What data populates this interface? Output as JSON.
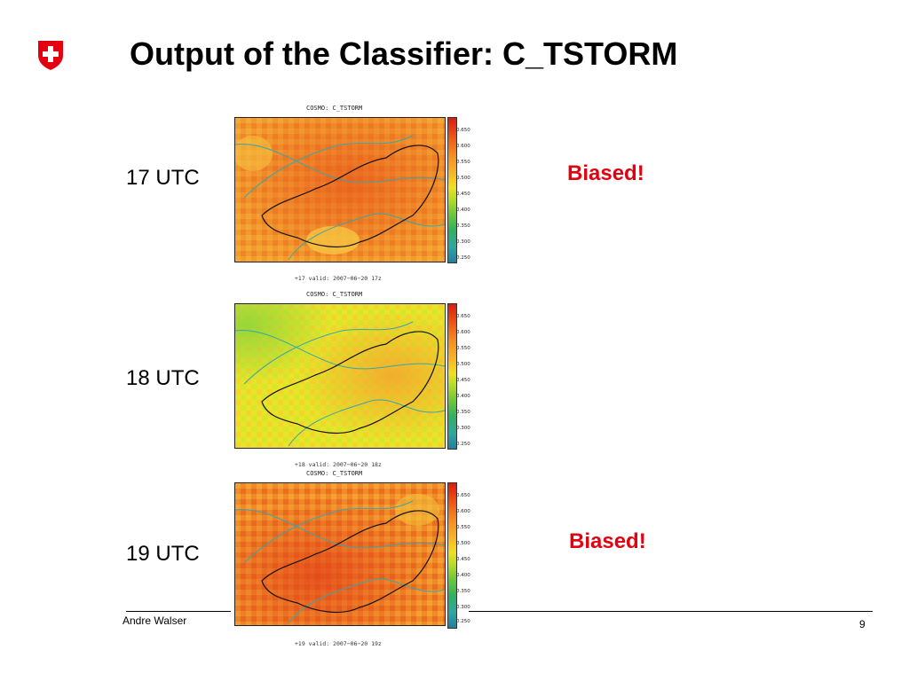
{
  "slide": {
    "title": "Output of the Classifier: C_TSTORM",
    "footer_author": "Andre Walser",
    "page_number": "9",
    "accent_color": "#e3000f"
  },
  "panels": [
    {
      "time_label": "17 UTC",
      "plot_title": "COSMO: C_TSTORM",
      "caption": "+17    valid: 2007−06−20 17z",
      "annotation": "Biased!",
      "scale": [
        "0.650",
        "0.600",
        "0.550",
        "0.500",
        "0.450",
        "0.400",
        "0.350",
        "0.300",
        "0.250"
      ]
    },
    {
      "time_label": "18 UTC",
      "plot_title": "COSMO: C_TSTORM",
      "caption": "+18    valid: 2007−06−20 18z",
      "annotation": "",
      "scale": [
        "0.650",
        "0.600",
        "0.550",
        "0.500",
        "0.450",
        "0.400",
        "0.350",
        "0.300",
        "0.250"
      ]
    },
    {
      "time_label": "19 UTC",
      "plot_title": "COSMO: C_TSTORM",
      "caption": "+19    valid: 2007−06−20 19z",
      "annotation": "Biased!",
      "scale": [
        "0.650",
        "0.600",
        "0.550",
        "0.500",
        "0.450",
        "0.400",
        "0.350",
        "0.300",
        "0.250"
      ]
    }
  ]
}
